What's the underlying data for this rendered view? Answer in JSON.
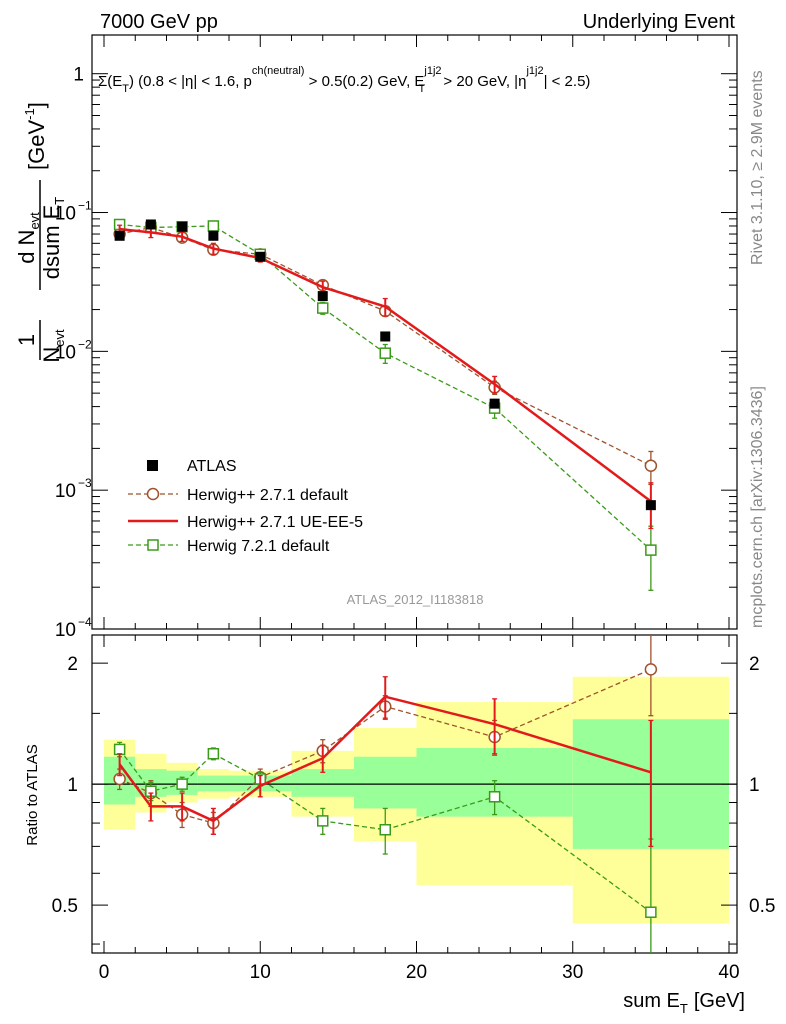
{
  "header": {
    "left": "7000 GeV pp",
    "right": "Underlying Event"
  },
  "cut_label": {
    "a": "Σ(E",
    "a_sub": "T",
    "b": ") (0.8 < |η| < 1.6, p",
    "b_sup": "ch(neutral)",
    "c": " > 0.5(0.2) GeV, E",
    "c_sup": "j1j2",
    "c_sub": "T",
    "d": " > 20 GeV, |η",
    "d_sup": "j1j2",
    "e": "| < 2.5)"
  },
  "side": {
    "rivet": "Rivet 3.1.10, ≥ 2.9M events",
    "mcplots": "mcplots.cern.ch [arXiv:1306.3436]"
  },
  "analysis_label": "ATLAS_2012_I1183818",
  "axes": {
    "y_top": {
      "frac_num": "1",
      "frac_den": "N",
      "frac_den_sub": "evt",
      "frac2_num": "d N",
      "frac2_num_sub": "evt",
      "frac2_den": "dsum E",
      "frac2_den_sub": "T",
      "unit": "[GeV",
      "unit_sup": "-1",
      "unit_close": "]"
    },
    "y_bottom": "Ratio to ATLAS",
    "x": "sum E",
    "x_sub": "T",
    "x_unit": "[GeV]",
    "x_ticks": [
      "0",
      "10",
      "20",
      "30",
      "40"
    ],
    "top_ticks": [
      {
        "base": "1",
        "exp": ""
      },
      {
        "base": "10",
        "exp": "−1"
      },
      {
        "base": "10",
        "exp": "−2"
      },
      {
        "base": "10",
        "exp": "−3"
      },
      {
        "base": "10",
        "exp": "−4"
      }
    ],
    "ratio_ticks": [
      "0.5",
      "1",
      "2"
    ]
  },
  "legend": [
    {
      "label": "ATLAS"
    },
    {
      "label": "Herwig++ 2.7.1 default"
    },
    {
      "label": "Herwig++ 2.7.1 UE-EE-5"
    },
    {
      "label": "Herwig 7.2.1 default"
    }
  ],
  "chart_data": {
    "type": "line",
    "x_range": [
      0,
      40
    ],
    "y_top_range": [
      0.0001,
      1.9
    ],
    "y_top_scale": "log",
    "y_ratio_range": [
      0.38,
      2.35
    ],
    "y_ratio_scale": "log",
    "x_bins": [
      [
        0,
        2
      ],
      [
        2,
        4
      ],
      [
        4,
        6
      ],
      [
        6,
        8
      ],
      [
        8,
        12
      ],
      [
        12,
        16
      ],
      [
        16,
        20
      ],
      [
        20,
        30
      ],
      [
        30,
        40
      ]
    ],
    "x": [
      1,
      3,
      5,
      7,
      10,
      14,
      18,
      25,
      35
    ],
    "colors": {
      "data": "#000000",
      "herwigpp_default": "#a0522d",
      "herwigpp_ueee5": "#e31a1c",
      "herwig7": "#3a9a1a",
      "band_inner": "#99ff99",
      "band_outer": "#ffff99"
    },
    "series": [
      {
        "name": "ATLAS",
        "style": "markers",
        "y": [
          0.068,
          0.082,
          0.079,
          0.068,
          0.048,
          0.025,
          0.0128,
          0.0042,
          0.00078
        ]
      },
      {
        "name": "Herwig++ 2.7.1 default",
        "style": "dashed-circle",
        "y": [
          0.07,
          0.078,
          0.066,
          0.054,
          0.05,
          0.03,
          0.0195,
          0.0055,
          0.0015
        ],
        "yerr": [
          0.004,
          0.005,
          0.004,
          0.004,
          0.003,
          0.002,
          0.0015,
          0.0006,
          0.0004
        ]
      },
      {
        "name": "Herwig++ 2.7.1 UE-EE-5",
        "style": "solid",
        "y": [
          0.076,
          0.072,
          0.067,
          0.055,
          0.047,
          0.029,
          0.021,
          0.0058,
          0.00083
        ],
        "yerr": [
          0.005,
          0.006,
          0.005,
          0.005,
          0.003,
          0.003,
          0.003,
          0.0008,
          0.0003
        ]
      },
      {
        "name": "Herwig 7.2.1 default",
        "style": "dashed-square",
        "y": [
          0.082,
          0.078,
          0.079,
          0.08,
          0.05,
          0.0205,
          0.0097,
          0.0039,
          0.00037
        ],
        "yerr": [
          0.004,
          0.005,
          0.004,
          0.004,
          0.003,
          0.002,
          0.0015,
          0.0006,
          0.00018
        ]
      }
    ],
    "ratio": {
      "band_inner": [
        [
          0.89,
          1.17
        ],
        [
          0.93,
          1.09
        ],
        [
          0.94,
          1.08
        ],
        [
          0.96,
          1.05
        ],
        [
          0.96,
          1.05
        ],
        [
          0.93,
          1.09
        ],
        [
          0.87,
          1.17
        ],
        [
          0.83,
          1.23
        ],
        [
          0.69,
          1.45
        ]
      ],
      "band_outer": [
        [
          0.77,
          1.29
        ],
        [
          0.85,
          1.19
        ],
        [
          0.9,
          1.13
        ],
        [
          0.92,
          1.09
        ],
        [
          0.93,
          1.08
        ],
        [
          0.83,
          1.21
        ],
        [
          0.72,
          1.38
        ],
        [
          0.56,
          1.6
        ],
        [
          0.45,
          1.85
        ]
      ],
      "series": [
        {
          "name": "Herwig++ 2.7.1 default",
          "y": [
            1.03,
            0.95,
            0.84,
            0.8,
            1.04,
            1.21,
            1.56,
            1.31,
            1.93
          ],
          "yerr": [
            0.06,
            0.07,
            0.06,
            0.05,
            0.05,
            0.08,
            0.1,
            0.13,
            0.45
          ]
        },
        {
          "name": "Herwig++ 2.7.1 UE-EE-5",
          "y": [
            1.12,
            0.88,
            0.88,
            0.81,
            0.99,
            1.16,
            1.65,
            1.41,
            1.07
          ],
          "yerr": [
            0.07,
            0.07,
            0.07,
            0.06,
            0.06,
            0.09,
            0.2,
            0.22,
            0.37
          ]
        },
        {
          "name": "Herwig 7.2.1 default",
          "y": [
            1.22,
            0.96,
            1.0,
            1.19,
            1.03,
            0.81,
            0.77,
            0.93,
            0.48
          ],
          "yerr": [
            0.05,
            0.05,
            0.04,
            0.04,
            0.04,
            0.06,
            0.1,
            0.09,
            0.25
          ]
        }
      ]
    }
  }
}
